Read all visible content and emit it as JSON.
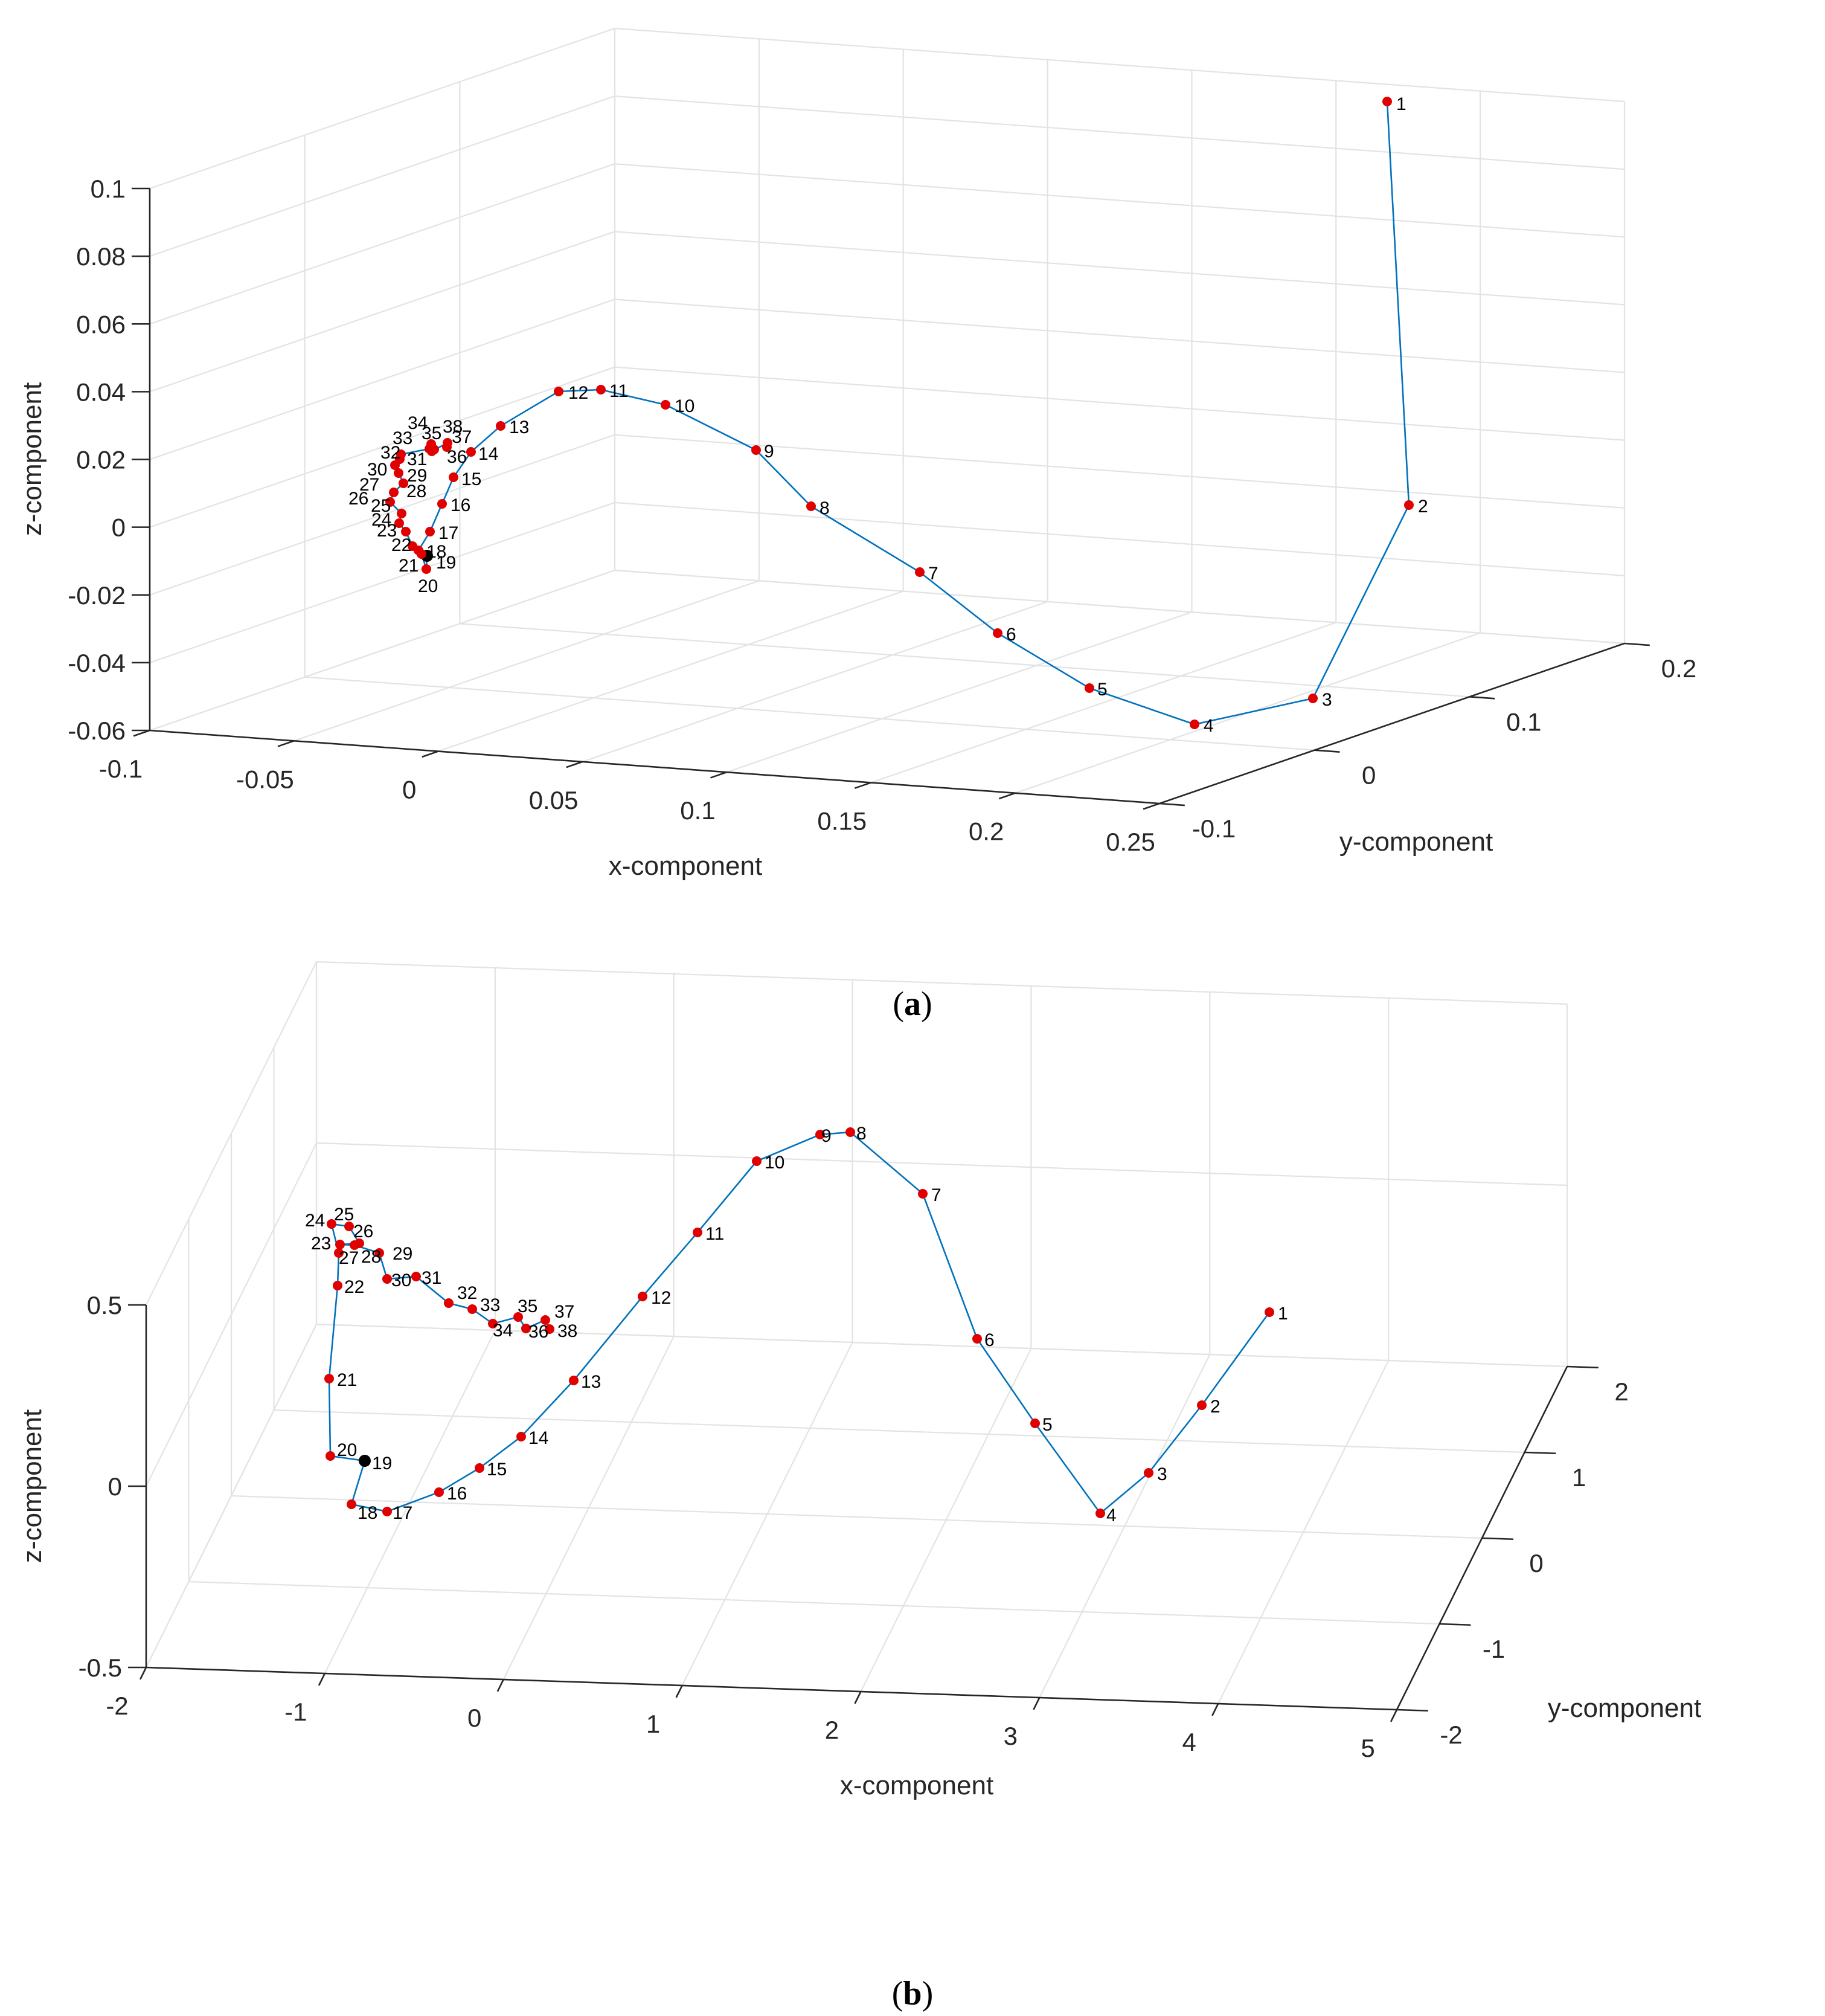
{
  "chart_data": [
    {
      "panel": "a",
      "type": "scatter3d",
      "caption_letter": "a",
      "xlabel": "x-component",
      "ylabel": "y-component",
      "zlabel": "z-component",
      "xlim": [
        -0.1,
        0.25
      ],
      "ylim": [
        -0.1,
        0.2
      ],
      "zlim": [
        -0.06,
        0.1
      ],
      "x_ticks": [
        "-0.1",
        "-0.05",
        "0",
        "0.05",
        "0.1",
        "0.15",
        "0.2",
        "0.25"
      ],
      "y_ticks": [
        "-0.1",
        "0",
        "0.1",
        "0.2"
      ],
      "z_ticks": [
        "-0.06",
        "-0.04",
        "-0.02",
        "0",
        "0.02",
        "0.04",
        "0.06",
        "0.08",
        "0.1"
      ],
      "highlight_point": 19,
      "point_labels": [
        "1",
        "2",
        "3",
        "4",
        "5",
        "6",
        "7",
        "8",
        "9",
        "10",
        "11",
        "12",
        "13",
        "14",
        "15",
        "16",
        "17",
        "18",
        "19",
        "20",
        "21",
        "22",
        "23",
        "24",
        "25",
        "26",
        "27",
        "28",
        "29",
        "30",
        "31",
        "32",
        "33",
        "34",
        "35",
        "36",
        "37",
        "38"
      ]
    },
    {
      "panel": "b",
      "type": "scatter3d",
      "caption_letter": "b",
      "xlabel": "x-component",
      "ylabel": "y-component",
      "zlabel": "z-component",
      "xlim": [
        -2,
        5
      ],
      "ylim": [
        -2,
        2
      ],
      "zlim": [
        -0.5,
        0.5
      ],
      "x_ticks": [
        "-2",
        "-1",
        "0",
        "1",
        "2",
        "3",
        "4",
        "5"
      ],
      "y_ticks": [
        "-2",
        "-1",
        "0",
        "1",
        "2"
      ],
      "z_ticks": [
        "-0.5",
        "0",
        "0.5"
      ],
      "highlight_point": 19,
      "point_labels": [
        "1",
        "2",
        "3",
        "4",
        "5",
        "6",
        "7",
        "8",
        "9",
        "10",
        "11",
        "12",
        "13",
        "14",
        "15",
        "16",
        "17",
        "18",
        "19",
        "20",
        "21",
        "22",
        "23",
        "24",
        "25",
        "26",
        "27",
        "28",
        "29",
        "30",
        "31",
        "32",
        "33",
        "34",
        "35",
        "36",
        "37",
        "38"
      ]
    }
  ],
  "colors": {
    "marker": "#e00000",
    "highlight": "#000000",
    "line": "#0072bd",
    "grid": "#e3e3e3"
  }
}
